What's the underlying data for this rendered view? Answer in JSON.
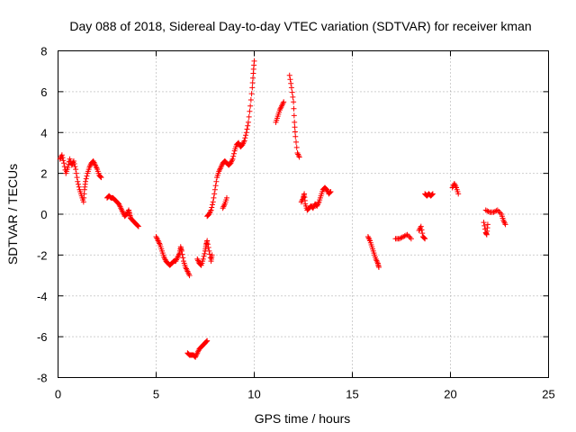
{
  "chart_data": {
    "type": "scatter",
    "title": "Day 088 of 2018, Sidereal Day-to-day VTEC variation (SDTVAR) for receiver kman",
    "xlabel": "GPS time / hours",
    "ylabel": "SDTVAR / TECUs",
    "xlim": [
      0,
      25
    ],
    "ylim": [
      -8,
      8
    ],
    "xticks": [
      0,
      5,
      10,
      15,
      20,
      25
    ],
    "xtick_labels": [
      "0",
      "5",
      "10",
      "15",
      "20",
      "25"
    ],
    "yticks": [
      -8,
      -6,
      -4,
      -2,
      0,
      2,
      4,
      6,
      8
    ],
    "ytick_labels": [
      "-8",
      "-6",
      "-4",
      "-2",
      "0",
      "2",
      "4",
      "6",
      "8"
    ],
    "grid": true,
    "marker": "+",
    "color": "#ff0000",
    "series": [
      {
        "name": "SDTVAR",
        "segments": [
          [
            [
              0.1,
              2.7
            ],
            [
              0.2,
              2.9
            ],
            [
              0.3,
              2.5
            ],
            [
              0.4,
              2.0
            ],
            [
              0.5,
              2.3
            ],
            [
              0.6,
              2.7
            ],
            [
              0.7,
              2.4
            ],
            [
              0.8,
              2.6
            ],
            [
              0.9,
              2.2
            ],
            [
              1.0,
              1.6
            ],
            [
              1.1,
              1.2
            ],
            [
              1.2,
              0.9
            ],
            [
              1.3,
              0.6
            ],
            [
              1.35,
              1.2
            ],
            [
              1.4,
              1.6
            ],
            [
              1.5,
              2.0
            ],
            [
              1.6,
              2.3
            ],
            [
              1.7,
              2.5
            ],
            [
              1.8,
              2.6
            ],
            [
              1.9,
              2.4
            ],
            [
              2.0,
              2.2
            ],
            [
              2.1,
              1.9
            ],
            [
              2.2,
              1.8
            ]
          ],
          [
            [
              2.5,
              0.8
            ],
            [
              2.6,
              0.9
            ],
            [
              2.7,
              0.8
            ],
            [
              2.8,
              0.8
            ],
            [
              2.9,
              0.7
            ],
            [
              3.0,
              0.6
            ],
            [
              3.1,
              0.5
            ],
            [
              3.2,
              0.3
            ],
            [
              3.3,
              0.1
            ],
            [
              3.4,
              -0.1
            ],
            [
              3.5,
              0.0
            ],
            [
              3.6,
              0.2
            ],
            [
              3.65,
              0.0
            ],
            [
              3.7,
              -0.2
            ],
            [
              3.8,
              -0.3
            ],
            [
              3.9,
              -0.4
            ],
            [
              4.0,
              -0.5
            ],
            [
              4.1,
              -0.6
            ]
          ],
          [
            [
              5.0,
              -1.1
            ],
            [
              5.1,
              -1.3
            ],
            [
              5.2,
              -1.5
            ],
            [
              5.3,
              -1.8
            ],
            [
              5.4,
              -2.1
            ],
            [
              5.5,
              -2.3
            ],
            [
              5.6,
              -2.4
            ],
            [
              5.7,
              -2.5
            ],
            [
              5.8,
              -2.4
            ],
            [
              5.9,
              -2.3
            ],
            [
              6.0,
              -2.3
            ],
            [
              6.1,
              -2.1
            ],
            [
              6.2,
              -1.9
            ],
            [
              6.25,
              -1.6
            ],
            [
              6.3,
              -1.8
            ],
            [
              6.4,
              -2.3
            ],
            [
              6.5,
              -2.6
            ],
            [
              6.6,
              -2.8
            ],
            [
              6.7,
              -3.0
            ]
          ],
          [
            [
              6.6,
              -6.8
            ],
            [
              6.7,
              -6.9
            ],
            [
              6.8,
              -6.9
            ],
            [
              6.9,
              -6.9
            ],
            [
              7.0,
              -7.0
            ],
            [
              7.1,
              -6.8
            ],
            [
              7.2,
              -6.6
            ],
            [
              7.3,
              -6.5
            ],
            [
              7.4,
              -6.4
            ],
            [
              7.5,
              -6.3
            ],
            [
              7.6,
              -6.2
            ]
          ],
          [
            [
              7.1,
              -2.2
            ],
            [
              7.2,
              -2.4
            ],
            [
              7.3,
              -2.5
            ],
            [
              7.4,
              -2.2
            ],
            [
              7.5,
              -1.8
            ],
            [
              7.55,
              -1.5
            ],
            [
              7.6,
              -1.3
            ],
            [
              7.7,
              -1.8
            ],
            [
              7.8,
              -2.3
            ],
            [
              7.85,
              -2.0
            ]
          ],
          [
            [
              7.6,
              -0.1
            ],
            [
              7.7,
              0.0
            ],
            [
              7.8,
              0.2
            ],
            [
              7.9,
              0.6
            ],
            [
              8.0,
              1.2
            ],
            [
              8.1,
              1.8
            ],
            [
              8.2,
              2.1
            ],
            [
              8.3,
              2.3
            ],
            [
              8.4,
              2.5
            ],
            [
              8.5,
              2.6
            ],
            [
              8.6,
              2.5
            ],
            [
              8.7,
              2.4
            ],
            [
              8.8,
              2.5
            ],
            [
              8.9,
              2.7
            ],
            [
              9.0,
              3.1
            ],
            [
              9.1,
              3.4
            ],
            [
              9.2,
              3.5
            ],
            [
              9.3,
              3.3
            ],
            [
              9.4,
              3.4
            ],
            [
              9.5,
              3.6
            ],
            [
              9.6,
              4.0
            ],
            [
              9.7,
              4.5
            ],
            [
              9.8,
              5.3
            ],
            [
              9.9,
              6.2
            ],
            [
              9.95,
              6.9
            ],
            [
              10.0,
              7.5
            ]
          ],
          [
            [
              8.4,
              0.3
            ],
            [
              8.5,
              0.5
            ],
            [
              8.6,
              0.8
            ]
          ],
          [
            [
              11.1,
              4.5
            ],
            [
              11.2,
              4.8
            ],
            [
              11.3,
              5.1
            ],
            [
              11.4,
              5.3
            ],
            [
              11.5,
              5.5
            ]
          ],
          [
            [
              11.8,
              6.8
            ],
            [
              11.9,
              6.2
            ],
            [
              12.0,
              5.5
            ],
            [
              12.05,
              4.5
            ],
            [
              12.1,
              3.8
            ],
            [
              12.2,
              3.0
            ],
            [
              12.3,
              2.8
            ]
          ],
          [
            [
              12.4,
              0.6
            ],
            [
              12.5,
              0.8
            ],
            [
              12.55,
              1.0
            ],
            [
              12.6,
              0.5
            ],
            [
              12.7,
              0.2
            ],
            [
              12.8,
              0.3
            ],
            [
              12.9,
              0.4
            ],
            [
              13.0,
              0.3
            ],
            [
              13.1,
              0.5
            ],
            [
              13.2,
              0.4
            ],
            [
              13.3,
              0.6
            ],
            [
              13.4,
              0.9
            ],
            [
              13.5,
              1.2
            ],
            [
              13.6,
              1.3
            ],
            [
              13.7,
              1.2
            ],
            [
              13.8,
              1.0
            ],
            [
              13.9,
              1.1
            ]
          ],
          [
            [
              15.8,
              -1.1
            ],
            [
              15.9,
              -1.3
            ],
            [
              16.0,
              -1.6
            ],
            [
              16.1,
              -1.9
            ],
            [
              16.2,
              -2.2
            ],
            [
              16.3,
              -2.4
            ],
            [
              16.35,
              -2.6
            ]
          ],
          [
            [
              17.2,
              -1.2
            ],
            [
              17.4,
              -1.2
            ],
            [
              17.6,
              -1.1
            ],
            [
              17.8,
              -1.0
            ],
            [
              18.0,
              -1.2
            ]
          ],
          [
            [
              18.4,
              -0.8
            ],
            [
              18.5,
              -0.6
            ],
            [
              18.6,
              -1.1
            ],
            [
              18.7,
              -1.2
            ]
          ],
          [
            [
              18.7,
              1.0
            ],
            [
              18.8,
              0.9
            ],
            [
              18.9,
              1.0
            ],
            [
              19.0,
              0.9
            ],
            [
              19.1,
              1.0
            ]
          ],
          [
            [
              20.1,
              1.3
            ],
            [
              20.2,
              1.5
            ],
            [
              20.3,
              1.3
            ],
            [
              20.4,
              1.0
            ]
          ],
          [
            [
              21.7,
              -0.4
            ],
            [
              21.8,
              -0.9
            ],
            [
              21.85,
              -1.0
            ],
            [
              21.9,
              -0.5
            ]
          ],
          [
            [
              21.8,
              0.2
            ],
            [
              22.0,
              0.1
            ],
            [
              22.2,
              0.1
            ],
            [
              22.4,
              0.2
            ],
            [
              22.6,
              0.0
            ],
            [
              22.7,
              -0.3
            ],
            [
              22.8,
              -0.5
            ]
          ]
        ]
      }
    ]
  }
}
